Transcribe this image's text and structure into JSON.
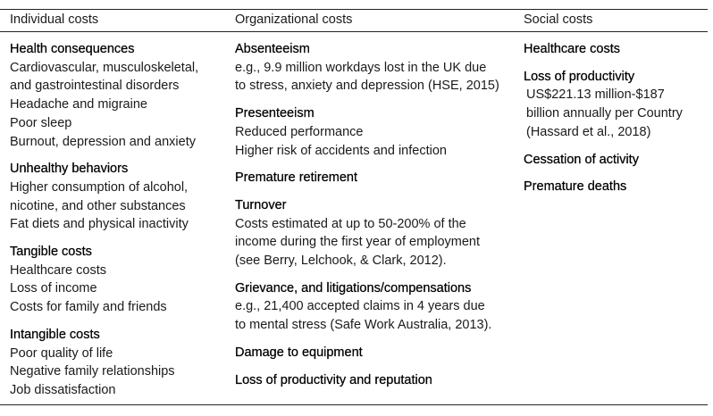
{
  "headers": {
    "individual": "Individual costs",
    "organizational": "Organizational costs",
    "social": "Social costs"
  },
  "individual": [
    {
      "title": "Health consequences",
      "lines": [
        "Cardiovascular, musculoskeletal,",
        "and gastrointestinal disorders",
        "Headache and migraine",
        "Poor sleep",
        "Burnout, depression and anxiety"
      ]
    },
    {
      "title": "Unhealthy behaviors",
      "lines": [
        "Higher consumption of alcohol,",
        "nicotine, and other substances",
        "Fat diets and physical inactivity"
      ]
    },
    {
      "title": "Tangible costs",
      "lines": [
        "Healthcare costs",
        "Loss of income",
        "Costs for family and friends"
      ]
    },
    {
      "title": "Intangible costs",
      "lines": [
        "Poor quality of life",
        "Negative family relationships",
        "Job dissatisfaction"
      ]
    }
  ],
  "organizational": [
    {
      "title": "Absenteeism",
      "lines": [
        "e.g., 9.9 million workdays lost in the UK due",
        "to stress, anxiety and depression (HSE, 2015)"
      ]
    },
    {
      "title": "Presenteeism",
      "lines": [
        "Reduced performance",
        "Higher risk of accidents and infection"
      ]
    },
    {
      "title": "Premature retirement",
      "lines": []
    },
    {
      "title": "Turnover",
      "lines": [
        "Costs estimated at up to 50-200% of the",
        "income during the first year of employment",
        "(see Berry, Lelchook, & Clark, 2012)."
      ]
    },
    {
      "title": "Grievance, and litigations/compensations",
      "lines": [
        "e.g., 21,400 accepted claims in 4 years due",
        "to mental stress (Safe Work Australia, 2013)."
      ]
    },
    {
      "title": "Damage to equipment",
      "lines": []
    },
    {
      "title": "Loss of productivity and reputation",
      "lines": []
    }
  ],
  "social": [
    {
      "title": "Healthcare costs",
      "lines": []
    },
    {
      "title": "Loss of productivity",
      "lines": [
        "US$221.13 million-$187",
        "billion annually per Country",
        "(Hassard et al., 2018)"
      ]
    },
    {
      "title": "Cessation of activity",
      "lines": []
    },
    {
      "title": "Premature deaths",
      "lines": []
    }
  ]
}
